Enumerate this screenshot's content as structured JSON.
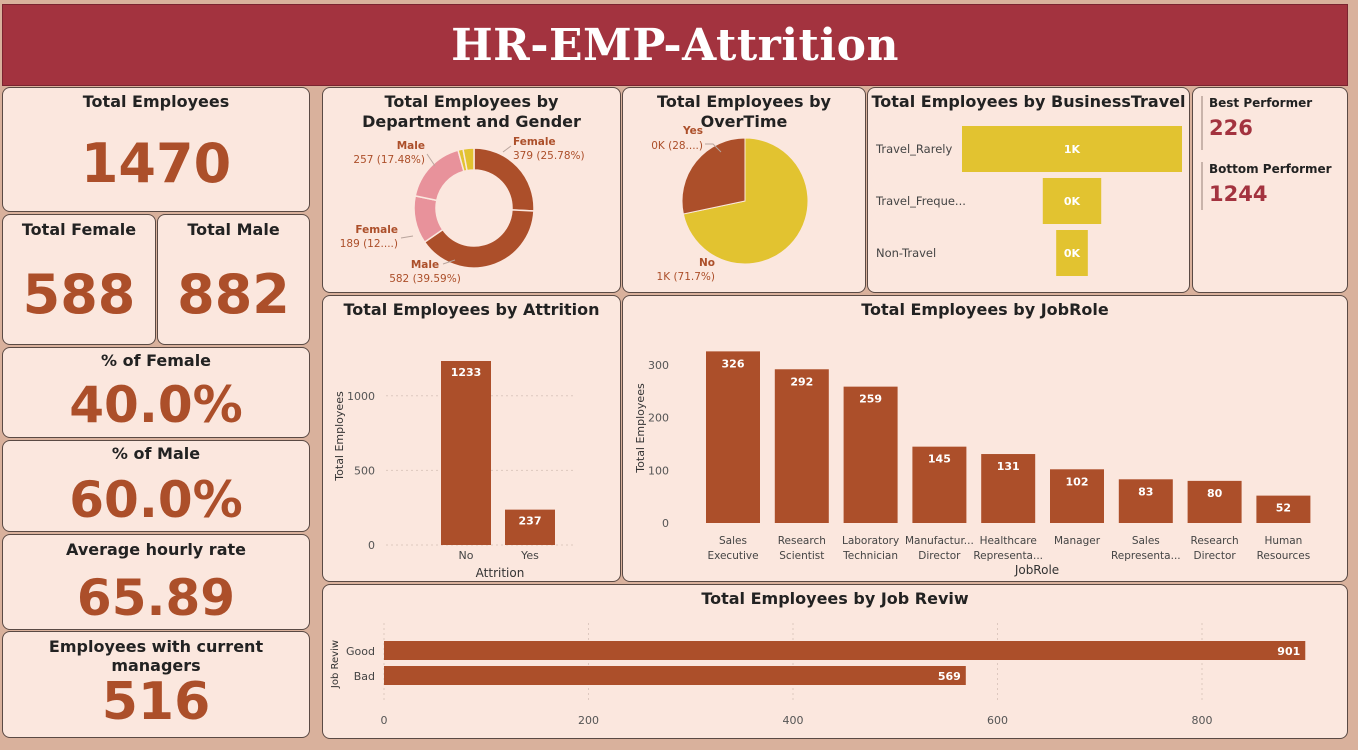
{
  "header": {
    "title": "HR-EMP-Attrition"
  },
  "kpis": {
    "total_employees": {
      "label": "Total Employees",
      "value": "1470"
    },
    "total_female": {
      "label": "Total Female",
      "value": "588"
    },
    "total_male": {
      "label": "Total Male",
      "value": "882"
    },
    "pct_female": {
      "label": "% of Female",
      "value": "40.0%"
    },
    "pct_male": {
      "label": "% of Male",
      "value": "60.0%"
    },
    "avg_hourly_rate": {
      "label": "Average hourly rate",
      "value": "65.89"
    },
    "current_managers": {
      "label": "Employees with current managers",
      "value": "516"
    }
  },
  "performers": {
    "best": {
      "label": "Best Performer",
      "value": "226"
    },
    "bottom": {
      "label": "Bottom Performer",
      "value": "1244"
    }
  },
  "colors": {
    "brown": "#ac4f2a",
    "pink": "#e8929b",
    "yellow": "#e2c330",
    "crimson": "#a3333f",
    "card_bg": "#fbe7de"
  },
  "chart_data": [
    {
      "id": "department_gender",
      "type": "pie",
      "title": "Total Employees by Department and Gender",
      "slices": [
        {
          "label": "Female",
          "value": 379,
          "text": "379 (25.78%)",
          "color": "#ac4f2a"
        },
        {
          "label": "Male",
          "value": 582,
          "text": "582 (39.59%)",
          "color": "#ac4f2a"
        },
        {
          "label": "Female",
          "value": 189,
          "text": "189 (12....)",
          "color": "#e8929b"
        },
        {
          "label": "Male",
          "value": 257,
          "text": "257 (17.48%)",
          "color": "#e8929b"
        },
        {
          "label": "",
          "value": 20,
          "text": "",
          "color": "#e2c330"
        },
        {
          "label": "",
          "value": 43,
          "text": "",
          "color": "#e2c330"
        }
      ]
    },
    {
      "id": "overtime",
      "type": "pie",
      "title": "Total Employees by OverTime",
      "slices": [
        {
          "label": "No",
          "value": 1054,
          "text": "1K (71.7%)",
          "color": "#e2c330"
        },
        {
          "label": "Yes",
          "value": 416,
          "text": "0K (28....)",
          "color": "#ac4f2a"
        }
      ]
    },
    {
      "id": "business_travel",
      "type": "bar",
      "title": "Total Employees by BusinessTravel",
      "categories": [
        "Travel_Rarely",
        "Travel_Freque...",
        "Non-Travel"
      ],
      "values": [
        1043,
        277,
        150
      ],
      "labels": [
        "1K",
        "0K",
        "0K"
      ],
      "color": "#e2c330"
    },
    {
      "id": "attrition",
      "type": "bar",
      "title": "Total Employees by Attrition",
      "categories": [
        "No",
        "Yes"
      ],
      "values": [
        1233,
        237
      ],
      "xlabel": "Attrition",
      "ylabel": "Total Employees",
      "yticks": [
        "0",
        "500",
        "1000"
      ],
      "ylim": [
        0,
        1300
      ],
      "color": "#ac4f2a"
    },
    {
      "id": "jobrole",
      "type": "bar",
      "title": "Total Employees by JobRole",
      "categories": [
        [
          "Sales",
          "Executive"
        ],
        [
          "Research",
          "Scientist"
        ],
        [
          "Laboratory",
          "Technician"
        ],
        [
          "Manufactur...",
          "Director"
        ],
        [
          "Healthcare",
          "Representa..."
        ],
        [
          "Manager"
        ],
        [
          "Sales",
          "Representa..."
        ],
        [
          "Research",
          "Director"
        ],
        [
          "Human",
          "Resources"
        ]
      ],
      "values": [
        326,
        292,
        259,
        145,
        131,
        102,
        83,
        80,
        52
      ],
      "xlabel": "JobRole",
      "ylabel": "Total Employees",
      "yticks": [
        "0",
        "100",
        "200",
        "300"
      ],
      "ylim": [
        0,
        340
      ],
      "color": "#ac4f2a"
    },
    {
      "id": "job_review",
      "type": "bar",
      "title": "Total Employees by Job Reviw",
      "categories": [
        "Good",
        "Bad"
      ],
      "values": [
        901,
        569
      ],
      "ylabel": "Job Reviw",
      "xticks": [
        "0",
        "200",
        "400",
        "600",
        "800"
      ],
      "xlim": [
        0,
        920
      ],
      "color": "#ac4f2a"
    }
  ]
}
